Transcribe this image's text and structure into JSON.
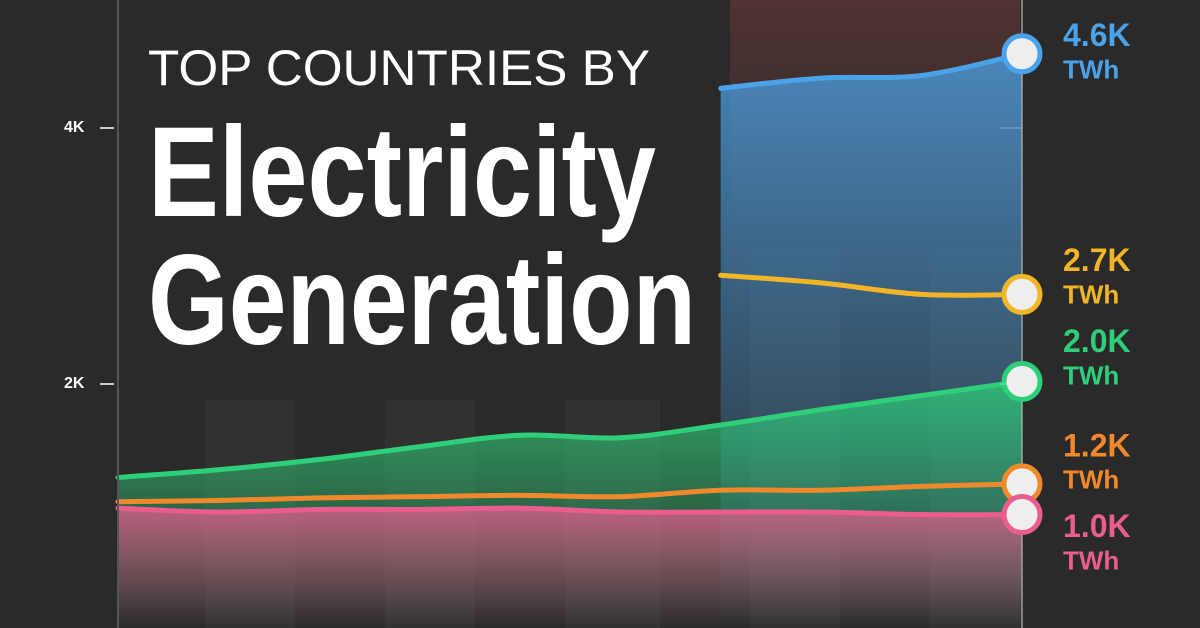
{
  "chart_data": {
    "type": "line",
    "title_lines": [
      "TOP COUNTRIES BY",
      "Electricity",
      "Generation"
    ],
    "categories": [
      null,
      null,
      null,
      null,
      null,
      null,
      null,
      null,
      null,
      null
    ],
    "ylim": [
      0,
      5000
    ],
    "yticks": [
      {
        "value": 2000,
        "label": "2K"
      },
      {
        "value": 4000,
        "label": "4K"
      }
    ],
    "unit": "TWh",
    "series": [
      {
        "color": "#4aa3e8",
        "area": true,
        "values": [
          null,
          null,
          null,
          null,
          null,
          null,
          4310,
          4390,
          4410,
          4580
        ],
        "value_labels": [
          "4.6K"
        ]
      },
      {
        "color": "#f2b526",
        "area": false,
        "values": [
          null,
          null,
          null,
          null,
          null,
          null,
          2850,
          2790,
          2700,
          2700
        ],
        "value_labels": [
          "2.7K"
        ]
      },
      {
        "color": "#2fcf7a",
        "area": true,
        "values": [
          1270,
          1330,
          1410,
          1510,
          1600,
          1580,
          1680,
          1800,
          1910,
          2020
        ],
        "value_labels": [
          "2.0K"
        ]
      },
      {
        "color": "#f0892c",
        "area": false,
        "values": [
          1080,
          1090,
          1110,
          1120,
          1130,
          1120,
          1170,
          1170,
          1200,
          1220
        ],
        "value_labels": [
          "1.2K"
        ]
      },
      {
        "color": "#ea5d8e",
        "area": true,
        "values": [
          1030,
          1000,
          1020,
          1020,
          1030,
          1000,
          1000,
          1000,
          980,
          980
        ],
        "value_labels": [
          "1.0K"
        ]
      }
    ]
  }
}
